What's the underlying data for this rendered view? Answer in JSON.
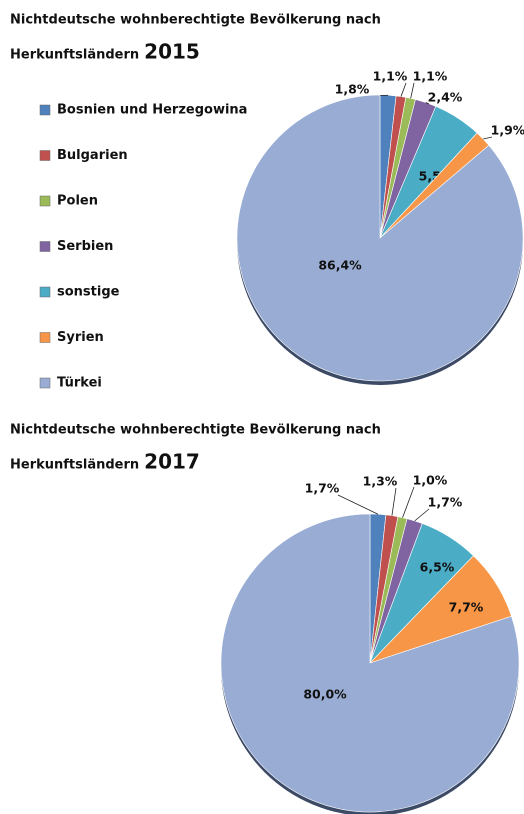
{
  "chart_data": [
    {
      "type": "pie",
      "title": "Nichtdeutsche wohnberechtigte Bevölkerung nach",
      "title_line2": "Herkunftsländern",
      "title_year": "2015",
      "categories": [
        "Bosnien und Herzegowina",
        "Bulgarien",
        "Polen",
        "Serbien",
        "sonstige",
        "Syrien",
        "Türkei"
      ],
      "values": [
        1.8,
        1.1,
        1.1,
        2.4,
        5.5,
        1.9,
        86.4
      ],
      "value_labels": [
        "1,8%",
        "1,1%",
        "1,1%",
        "2,4%",
        "5,5%",
        "1,9%",
        "86,4%"
      ],
      "colors": [
        "#4f81bd",
        "#c0504d",
        "#9bbb59",
        "#8064a2",
        "#4bacc6",
        "#f79646",
        "#98acd4"
      ],
      "legend": "left"
    },
    {
      "type": "pie",
      "title": "Nichtdeutsche wohnberechtigte Bevölkerung nach",
      "title_line2": "Herkunftsländern",
      "title_year": "2017",
      "categories": [
        "Bosnien und Herzegowina",
        "Bulgarien",
        "Polen",
        "Serbien",
        "sonstige",
        "Syrien",
        "Türkei"
      ],
      "values": [
        1.7,
        1.3,
        1.0,
        1.7,
        6.5,
        7.7,
        80.0
      ],
      "value_labels": [
        "1,7%",
        "1,3%",
        "1,0%",
        "1,7%",
        "6,5%",
        "7,7%",
        "80,0%"
      ],
      "colors": [
        "#4f81bd",
        "#c0504d",
        "#9bbb59",
        "#8064a2",
        "#4bacc6",
        "#f79646",
        "#98acd4"
      ]
    }
  ]
}
